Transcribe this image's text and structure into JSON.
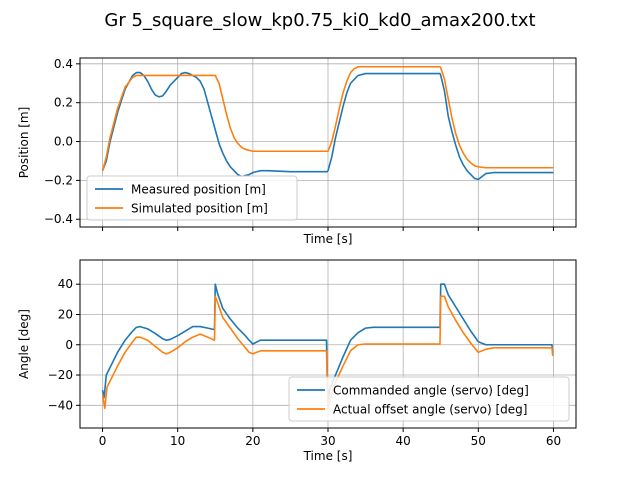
{
  "figure": {
    "title": "Gr 5_square_slow_kp0.75_ki0_kd0_amax200.txt"
  },
  "colors": {
    "series1": "#1f77b4",
    "series2": "#ff7f0e",
    "grid": "#b0b0b0"
  },
  "chart_data": [
    {
      "type": "line",
      "xlabel": "Time [s]",
      "ylabel": "Position [m]",
      "xlim": [
        -3,
        63
      ],
      "ylim": [
        -0.44,
        0.43
      ],
      "xticks": [
        0,
        10,
        20,
        30,
        40,
        50,
        60
      ],
      "yticks": [
        -0.4,
        -0.2,
        0.0,
        0.2,
        0.4
      ],
      "ytick_labels": [
        "−0.4",
        "−0.2",
        "0.0",
        "0.2",
        "0.4"
      ],
      "show_xtick_labels": false,
      "grid": true,
      "legend": "lower-left",
      "series": [
        {
          "name": "Measured position [m]",
          "x": [
            0,
            0.5,
            1,
            2,
            3,
            4,
            4.5,
            5,
            5.5,
            6,
            6.5,
            7,
            7.5,
            8,
            8.5,
            9,
            9.5,
            10,
            10.5,
            11,
            11.5,
            12,
            12.5,
            13,
            13.5,
            14,
            14.5,
            15,
            15.5,
            16,
            16.5,
            17,
            17.5,
            18,
            18.5,
            19,
            19.5,
            20,
            20.5,
            21,
            22,
            25,
            29.9,
            30,
            30.5,
            31,
            32,
            32.5,
            33,
            34,
            35,
            44.9,
            45,
            45.5,
            46,
            46.5,
            47,
            47.5,
            48,
            48.5,
            49,
            49.5,
            50,
            50.5,
            51,
            52,
            55,
            60
          ],
          "y": [
            -0.15,
            -0.1,
            0.0,
            0.15,
            0.27,
            0.34,
            0.355,
            0.355,
            0.34,
            0.31,
            0.27,
            0.24,
            0.23,
            0.235,
            0.26,
            0.29,
            0.31,
            0.33,
            0.35,
            0.355,
            0.35,
            0.34,
            0.33,
            0.31,
            0.27,
            0.2,
            0.13,
            0.06,
            -0.01,
            -0.06,
            -0.1,
            -0.13,
            -0.15,
            -0.17,
            -0.18,
            -0.175,
            -0.17,
            -0.16,
            -0.155,
            -0.15,
            -0.15,
            -0.155,
            -0.155,
            -0.15,
            -0.08,
            0.02,
            0.18,
            0.25,
            0.3,
            0.34,
            0.35,
            0.35,
            0.34,
            0.26,
            0.13,
            0.05,
            -0.02,
            -0.08,
            -0.12,
            -0.15,
            -0.17,
            -0.19,
            -0.195,
            -0.18,
            -0.165,
            -0.16,
            -0.16,
            -0.16
          ]
        },
        {
          "name": "Simulated position [m]",
          "x": [
            0,
            0.5,
            1,
            2,
            3,
            4,
            4.5,
            5,
            6,
            8,
            10,
            12,
            14,
            15,
            15.5,
            16,
            16.5,
            17,
            17.5,
            18,
            18.5,
            19,
            19.5,
            20,
            21,
            25,
            29.9,
            30,
            30.5,
            31,
            31.5,
            32,
            32.5,
            33,
            33.5,
            34,
            40,
            44.9,
            45,
            45.5,
            46,
            46.5,
            47,
            47.5,
            48,
            48.5,
            49,
            49.5,
            50,
            51,
            55,
            60
          ],
          "y": [
            -0.15,
            -0.08,
            0.02,
            0.17,
            0.28,
            0.33,
            0.34,
            0.34,
            0.34,
            0.34,
            0.34,
            0.34,
            0.34,
            0.34,
            0.3,
            0.22,
            0.14,
            0.07,
            0.02,
            -0.01,
            -0.03,
            -0.04,
            -0.045,
            -0.05,
            -0.05,
            -0.05,
            -0.05,
            -0.05,
            0.0,
            0.08,
            0.17,
            0.25,
            0.31,
            0.355,
            0.375,
            0.385,
            0.385,
            0.385,
            0.38,
            0.32,
            0.22,
            0.12,
            0.04,
            -0.02,
            -0.06,
            -0.09,
            -0.11,
            -0.125,
            -0.13,
            -0.135,
            -0.135,
            -0.135
          ]
        }
      ]
    },
    {
      "type": "line",
      "xlabel": "Time [s]",
      "ylabel": "Angle [deg]",
      "xlim": [
        -3,
        63
      ],
      "ylim": [
        -55,
        56
      ],
      "xticks": [
        0,
        10,
        20,
        30,
        40,
        50,
        60
      ],
      "yticks": [
        -40,
        -20,
        0,
        20,
        40
      ],
      "ytick_labels": [
        "−40",
        "−20",
        "0",
        "20",
        "40"
      ],
      "show_xtick_labels": true,
      "grid": true,
      "legend": "lower-right",
      "series": [
        {
          "name": "Commanded angle (servo) [deg]",
          "x": [
            0,
            0.2,
            0.5,
            1,
            1.5,
            2,
            3,
            4,
            4.5,
            5,
            6,
            7,
            8,
            8.5,
            9,
            10,
            11,
            12,
            13,
            14,
            14.9,
            15,
            15.3,
            16,
            17,
            18,
            19,
            19.5,
            20,
            21,
            22,
            25,
            29.8,
            29.9,
            30,
            30.2,
            31,
            32,
            33,
            34,
            35,
            36,
            38,
            40,
            44.9,
            45,
            45.5,
            46,
            47,
            48,
            49,
            50,
            51,
            52,
            55,
            59.8,
            59.9,
            60
          ],
          "y": [
            -30,
            -35,
            -20,
            -15,
            -10,
            -5,
            3,
            9,
            11.5,
            12,
            10.5,
            7.5,
            4,
            3,
            3.5,
            6,
            9,
            12,
            12,
            11,
            10,
            40,
            34,
            24,
            17,
            11,
            6,
            3,
            0.5,
            3,
            3,
            3,
            3,
            -20,
            -38,
            -30,
            -20,
            -8,
            3,
            8,
            11,
            11.5,
            11.5,
            11.5,
            11.5,
            40,
            40,
            33,
            25,
            17,
            9,
            2,
            0,
            0,
            0,
            0,
            -6,
            -6
          ]
        },
        {
          "name": "Actual offset angle (servo) [deg]",
          "x": [
            0,
            0.3,
            0.6,
            1,
            2,
            3,
            4,
            4.5,
            5,
            6,
            7,
            8,
            8.5,
            9,
            10,
            11,
            12,
            13,
            14,
            14.9,
            15,
            15.3,
            16,
            17,
            18,
            19,
            19.5,
            20,
            21,
            22,
            25,
            29.8,
            30,
            30.3,
            31,
            32,
            33,
            34,
            35,
            38,
            40,
            44.9,
            45,
            45.5,
            46,
            47,
            48,
            49,
            50,
            51,
            52,
            55,
            59.8,
            59.9,
            60
          ],
          "y": [
            -33,
            -42,
            -28,
            -24,
            -14,
            -5,
            2,
            5,
            5,
            3,
            -1,
            -5,
            -6,
            -5,
            -2,
            2,
            5,
            7,
            5,
            3,
            32,
            28,
            18,
            11,
            4,
            -2,
            -5,
            -6,
            -4,
            -4,
            -4,
            -4,
            -43,
            -36,
            -25,
            -14,
            -4,
            0,
            0.5,
            0.5,
            0.5,
            0.5,
            32,
            32,
            25,
            16,
            8,
            1,
            -5,
            -3,
            -2,
            -2,
            -2,
            -7,
            -7
          ]
        }
      ]
    }
  ]
}
